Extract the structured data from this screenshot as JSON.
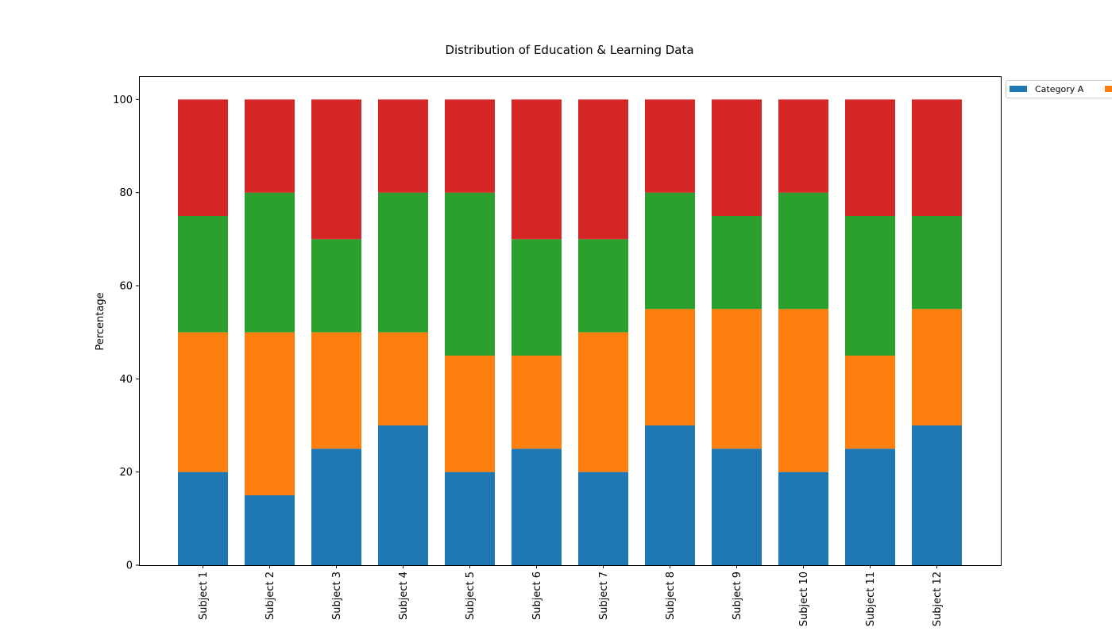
{
  "chart_data": {
    "type": "bar",
    "stacked": true,
    "title": "Distribution of Education & Learning Data",
    "xlabel": "",
    "ylabel": "Percentage",
    "ylim": [
      0,
      105
    ],
    "yticks": [
      0,
      20,
      40,
      60,
      80,
      100
    ],
    "grid": false,
    "legend_position": "outside-top-right",
    "categories": [
      "Subject 1",
      "Subject 2",
      "Subject 3",
      "Subject 4",
      "Subject 5",
      "Subject 6",
      "Subject 7",
      "Subject 8",
      "Subject 9",
      "Subject 10",
      "Subject 11",
      "Subject 12"
    ],
    "series": [
      {
        "name": "Category A",
        "color": "#1f77b4",
        "values": [
          20,
          15,
          25,
          30,
          20,
          25,
          20,
          30,
          25,
          20,
          25,
          30
        ]
      },
      {
        "color": "#ff7f0e",
        "values": [
          30,
          35,
          25,
          20,
          25,
          20,
          30,
          25,
          30,
          35,
          20,
          25
        ]
      },
      {
        "color": "#2ca02c",
        "values": [
          25,
          30,
          20,
          30,
          35,
          25,
          20,
          25,
          20,
          25,
          30,
          20
        ]
      },
      {
        "color": "#d62728",
        "values": [
          25,
          20,
          30,
          20,
          20,
          30,
          30,
          20,
          25,
          20,
          25,
          25
        ]
      }
    ]
  }
}
